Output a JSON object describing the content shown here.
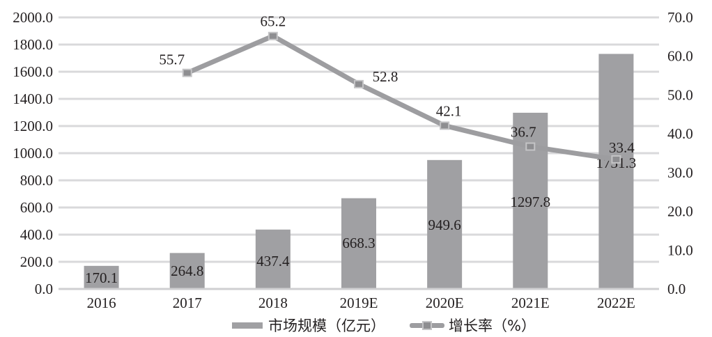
{
  "chart_data": {
    "type": "bar+line",
    "title": "",
    "categories": [
      "2016",
      "2017",
      "2018",
      "2019E",
      "2020E",
      "2021E",
      "2022E"
    ],
    "series": [
      {
        "name": "市场规模（亿元）",
        "type": "bar",
        "axis": "left",
        "color": "#a0a0a3",
        "values": [
          170.1,
          264.8,
          437.4,
          668.3,
          949.6,
          1297.8,
          1731.3
        ],
        "labels": [
          "170.1",
          "264.8",
          "437.4",
          "668.3",
          "949.6",
          "1297.8",
          "1731.3"
        ]
      },
      {
        "name": "增长率（%）",
        "type": "line",
        "axis": "right",
        "color": "#9d9da0",
        "marker": "square",
        "values": [
          null,
          55.7,
          65.2,
          52.8,
          42.1,
          36.7,
          33.4
        ],
        "labels": [
          "",
          "55.7",
          "65.2",
          "52.8",
          "42.1",
          "36.7",
          "33.4"
        ]
      }
    ],
    "y_left": {
      "label": "",
      "range": [
        0,
        2000
      ],
      "ticks": [
        "0.0",
        "200.0",
        "400.0",
        "600.0",
        "800.0",
        "1000.0",
        "1200.0",
        "1400.0",
        "1600.0",
        "1800.0",
        "2000.0"
      ]
    },
    "y_right": {
      "label": "",
      "range": [
        0,
        70
      ],
      "ticks": [
        "0.0",
        "10.0",
        "20.0",
        "30.0",
        "40.0",
        "50.0",
        "60.0",
        "70.0"
      ]
    },
    "xlabel": "",
    "grid": true,
    "legend_position": "bottom"
  },
  "legend": {
    "bar_label": "市场规模（亿元）",
    "line_label": "增长率（%）"
  }
}
